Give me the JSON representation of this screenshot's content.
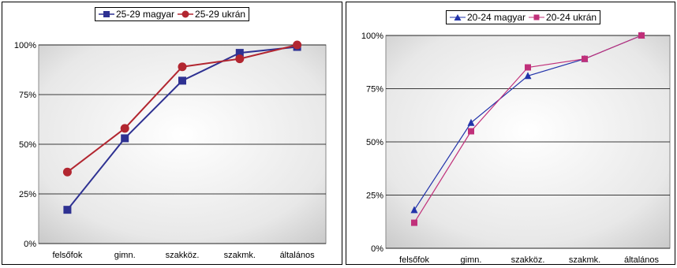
{
  "chart_data": [
    {
      "type": "line",
      "categories": [
        "felsőfok",
        "gimn.",
        "szakköz.",
        "szakmk.",
        "általános"
      ],
      "ylim": [
        0,
        100
      ],
      "yticks": [
        "0%",
        "25%",
        "50%",
        "75%",
        "100%"
      ],
      "grid": true,
      "legend": "top-center",
      "series": [
        {
          "name": "25-29 magyar",
          "values": [
            17,
            53,
            82,
            96,
            99
          ],
          "color": "#2e3192",
          "marker": "square"
        },
        {
          "name": "25-29 ukrán",
          "values": [
            36,
            58,
            89,
            93,
            100
          ],
          "color": "#b22630",
          "marker": "circle"
        }
      ]
    },
    {
      "type": "line",
      "categories": [
        "felsőfok",
        "gimn.",
        "szakköz.",
        "szakmk.",
        "általános"
      ],
      "ylim": [
        0,
        100
      ],
      "yticks": [
        "0%",
        "25%",
        "50%",
        "75%",
        "100%"
      ],
      "grid": true,
      "legend": "top-center",
      "series": [
        {
          "name": "20-24 magyar",
          "values": [
            18,
            59,
            81,
            89,
            100
          ],
          "color": "#2233aa",
          "marker": "triangle"
        },
        {
          "name": "20-24 ukrán",
          "values": [
            12,
            55,
            85,
            89,
            100
          ],
          "color": "#c0307a",
          "marker": "square"
        }
      ]
    }
  ]
}
